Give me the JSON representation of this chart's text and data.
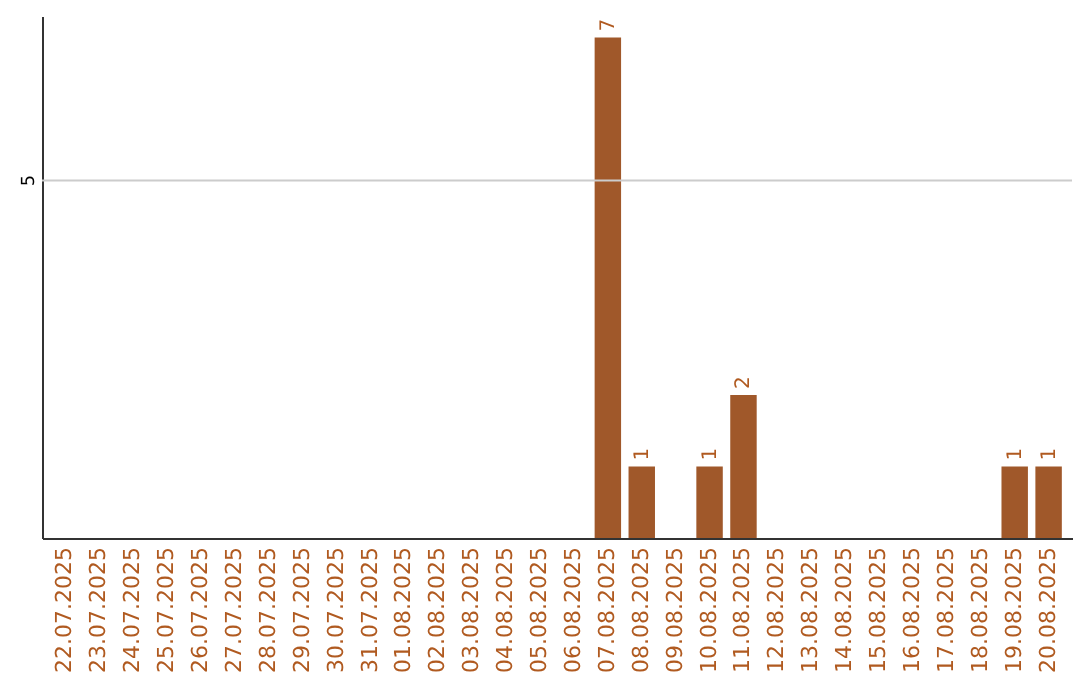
{
  "chart_data": {
    "type": "bar",
    "categories": [
      "22.07.2025",
      "23.07.2025",
      "24.07.2025",
      "25.07.2025",
      "26.07.2025",
      "27.07.2025",
      "28.07.2025",
      "29.07.2025",
      "30.07.2025",
      "31.07.2025",
      "01.08.2025",
      "02.08.2025",
      "03.08.2025",
      "04.08.2025",
      "05.08.2025",
      "06.08.2025",
      "07.08.2025",
      "08.08.2025",
      "09.08.2025",
      "10.08.2025",
      "11.08.2025",
      "12.08.2025",
      "13.08.2025",
      "14.08.2025",
      "15.08.2025",
      "16.08.2025",
      "17.08.2025",
      "18.08.2025",
      "19.08.2025",
      "20.08.2025"
    ],
    "values": [
      null,
      null,
      null,
      null,
      null,
      null,
      null,
      null,
      null,
      null,
      null,
      null,
      null,
      null,
      null,
      null,
      7,
      1,
      null,
      1,
      2,
      null,
      null,
      null,
      null,
      null,
      null,
      null,
      1,
      1
    ],
    "value_labels": [
      null,
      null,
      null,
      null,
      null,
      null,
      null,
      null,
      null,
      null,
      null,
      null,
      null,
      null,
      null,
      null,
      "7",
      "1",
      null,
      "1",
      "2",
      null,
      null,
      null,
      null,
      null,
      null,
      null,
      "1",
      "1"
    ],
    "color": "#a0582a",
    "ylim": [
      0,
      7.3
    ],
    "ref_lines": [
      {
        "axis": "y",
        "value": 5,
        "label": "5",
        "color": "#cccccc"
      }
    ]
  }
}
